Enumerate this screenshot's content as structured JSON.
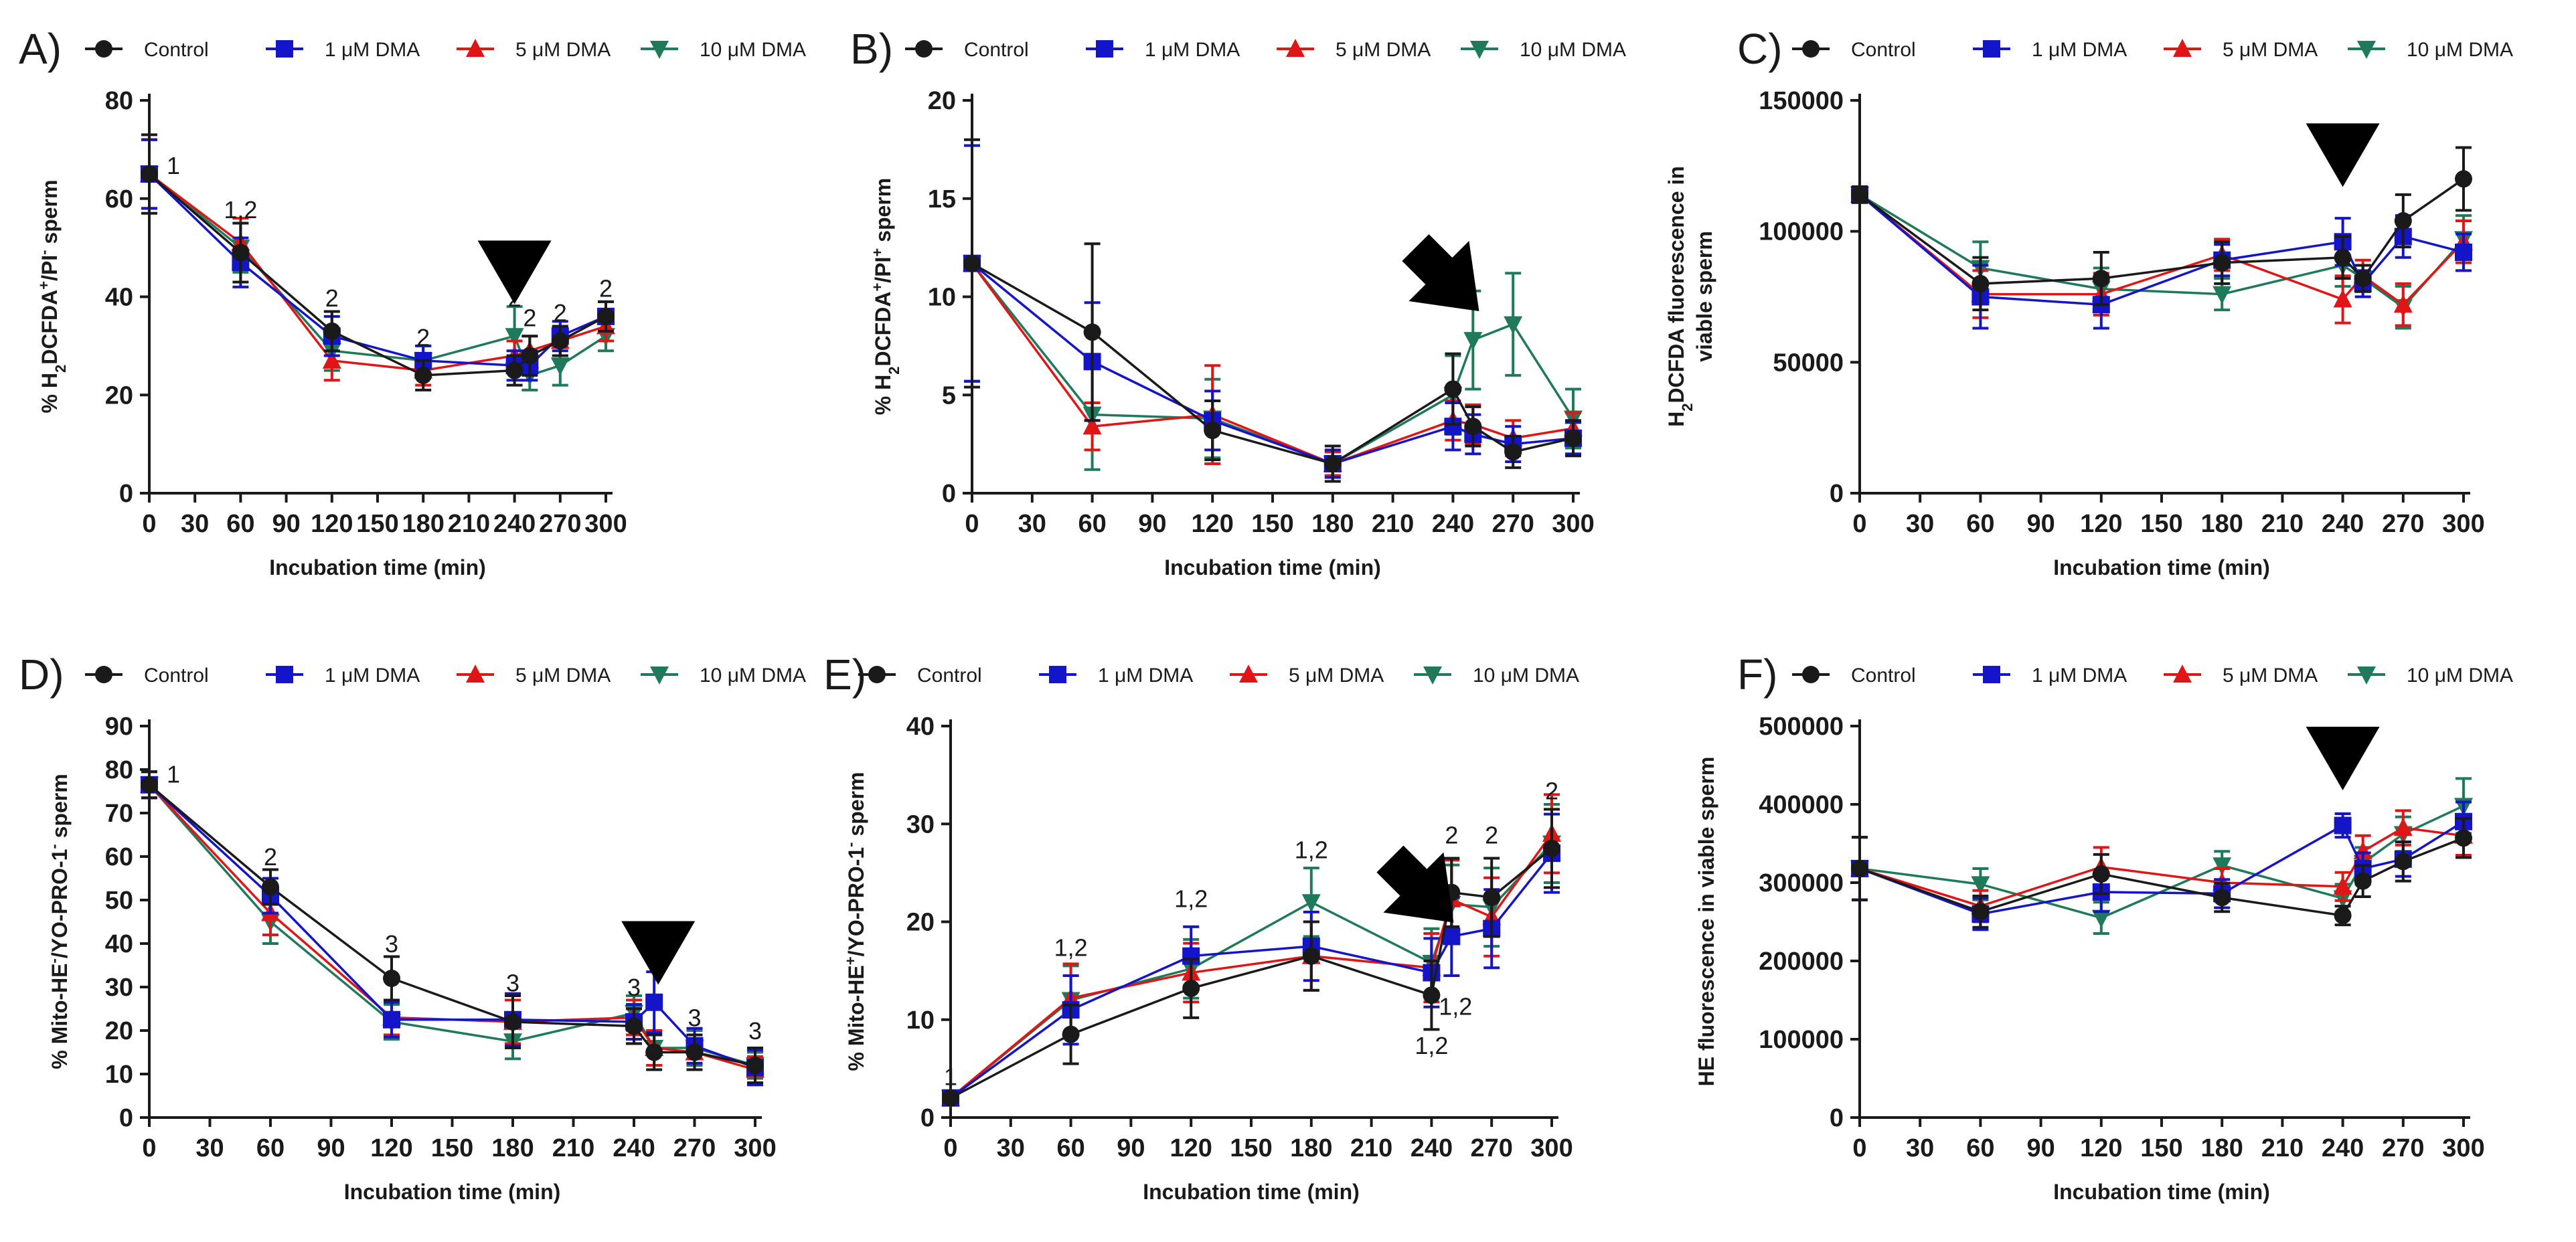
{
  "legend": {
    "items": [
      {
        "name": "Control",
        "color": "#1a1a1a",
        "marker": "circle"
      },
      {
        "name": "1 μM DMA",
        "color": "#1414c8",
        "marker": "square"
      },
      {
        "name": "5 μM DMA",
        "color": "#e01616",
        "marker": "triangle-up"
      },
      {
        "name": "10 μM DMA",
        "color": "#1f7a5a",
        "marker": "triangle-down"
      }
    ]
  },
  "chart_data": [
    {
      "panel": "A)",
      "type": "line",
      "xlabel": "Incubation time (min)",
      "ylabel_parts": [
        "% H",
        "2",
        "DCFDA",
        "+",
        "/PI",
        "-",
        " sperm"
      ],
      "x": [
        0,
        60,
        120,
        180,
        240,
        250,
        270,
        300
      ],
      "xticks": [
        0,
        30,
        60,
        90,
        120,
        150,
        180,
        210,
        240,
        270,
        300
      ],
      "xlim": [
        0,
        300
      ],
      "ylim": [
        0,
        80
      ],
      "yticks": [
        0,
        20,
        40,
        60,
        80
      ],
      "series": [
        {
          "name": "Control",
          "values": [
            65,
            49,
            33,
            24,
            25,
            28,
            31,
            36
          ],
          "err": [
            8,
            6,
            4,
            3,
            3,
            4,
            3,
            3
          ]
        },
        {
          "name": "1 μM DMA",
          "values": [
            65,
            47,
            32,
            27,
            26,
            26,
            32,
            36
          ],
          "err": [
            7,
            5,
            4,
            3,
            3,
            3,
            3,
            3
          ]
        },
        {
          "name": "5 μM DMA",
          "values": [
            65,
            51,
            27,
            25,
            28,
            29,
            31,
            34
          ],
          "err": [
            7,
            5,
            4,
            3,
            3,
            3,
            3,
            3
          ]
        },
        {
          "name": "10 μM DMA",
          "values": [
            65,
            50,
            29,
            27,
            32,
            24,
            26,
            32
          ],
          "err": [
            7,
            5,
            4,
            3,
            6,
            3,
            4,
            3
          ]
        }
      ],
      "annotations": [
        {
          "x": 0,
          "y": 65,
          "text": "1",
          "dx": 1
        },
        {
          "x": 60,
          "y": 56,
          "text": "1,2",
          "dx": 0
        },
        {
          "x": 120,
          "y": 38,
          "text": "2",
          "dx": 0
        },
        {
          "x": 180,
          "y": 30,
          "text": "2",
          "dx": 0
        },
        {
          "x": 240,
          "y": 38,
          "text": "2",
          "dx": 0
        },
        {
          "x": 250,
          "y": 34,
          "text": "2",
          "dx": 0
        },
        {
          "x": 270,
          "y": 35,
          "text": "2",
          "dx": 0
        },
        {
          "x": 300,
          "y": 40,
          "text": "2",
          "dx": 0
        }
      ],
      "arrow": {
        "x": 240,
        "y": 46,
        "dir": "down"
      }
    },
    {
      "panel": "B)",
      "type": "line",
      "xlabel": "Incubation time (min)",
      "ylabel_parts": [
        "% H",
        "2",
        "DCFDA",
        "+",
        "/PI",
        "+",
        " sperm"
      ],
      "x": [
        0,
        60,
        120,
        180,
        240,
        250,
        270,
        300
      ],
      "xticks": [
        0,
        30,
        60,
        90,
        120,
        150,
        180,
        210,
        240,
        270,
        300
      ],
      "xlim": [
        0,
        300
      ],
      "ylim": [
        0,
        20
      ],
      "yticks": [
        0,
        5,
        10,
        15,
        20
      ],
      "series": [
        {
          "name": "Control",
          "values": [
            11.7,
            8.2,
            3.2,
            1.5,
            5.3,
            3.4,
            2.1,
            2.8
          ],
          "err": [
            6.3,
            4.5,
            1.5,
            0.9,
            1.8,
            1.0,
            0.8,
            0.9
          ]
        },
        {
          "name": "1 μM DMA",
          "values": [
            11.7,
            6.7,
            3.7,
            1.5,
            3.4,
            3.0,
            2.5,
            2.8
          ],
          "err": [
            6,
            3,
            1.5,
            0.7,
            1.2,
            1.0,
            0.9,
            0.8
          ]
        },
        {
          "name": "5 μM DMA",
          "values": [
            11.7,
            3.4,
            4.0,
            1.5,
            3.7,
            3.5,
            2.8,
            3.3
          ],
          "err": [
            6,
            1.2,
            2.5,
            0.6,
            1.0,
            1.0,
            0.9,
            0.8
          ]
        },
        {
          "name": "10 μM DMA",
          "values": [
            11.7,
            4.0,
            3.8,
            1.5,
            5.0,
            7.8,
            8.6,
            3.8
          ],
          "err": [
            6,
            2.8,
            2.0,
            0.6,
            2.0,
            2.5,
            2.6,
            1.5
          ]
        }
      ],
      "annotations": [],
      "arrow": {
        "x": 238,
        "y": 10.8,
        "dir": "down-right"
      }
    },
    {
      "panel": "C)",
      "type": "line",
      "xlabel": "Incubation time (min)",
      "ylabel_lines": [
        [
          "H",
          "2",
          "DCFDA fluorescence in"
        ],
        [
          "viable sperm"
        ]
      ],
      "x": [
        0,
        60,
        120,
        180,
        240,
        250,
        270,
        300
      ],
      "xticks": [
        0,
        30,
        60,
        90,
        120,
        150,
        180,
        210,
        240,
        270,
        300
      ],
      "xlim": [
        0,
        300
      ],
      "ylim": [
        0,
        150000
      ],
      "yticks": [
        0,
        50000,
        100000,
        150000
      ],
      "series": [
        {
          "name": "Control",
          "values": [
            114000,
            80000,
            82000,
            88000,
            90000,
            82000,
            104000,
            120000
          ],
          "err": [
            3000,
            10000,
            10000,
            8000,
            8000,
            5000,
            10000,
            12000
          ]
        },
        {
          "name": "1 μM DMA",
          "values": [
            114000,
            75000,
            72000,
            89000,
            96000,
            80000,
            98000,
            92000
          ],
          "err": [
            3000,
            12000,
            9000,
            6000,
            9000,
            5000,
            8000,
            7000
          ]
        },
        {
          "name": "5 μM DMA",
          "values": [
            114000,
            76000,
            76000,
            91000,
            74000,
            83000,
            72000,
            96000
          ],
          "err": [
            3000,
            9000,
            8000,
            6000,
            9000,
            6000,
            8000,
            8000
          ]
        },
        {
          "name": "10 μM DMA",
          "values": [
            114000,
            86000,
            78000,
            76000,
            87000,
            82000,
            71000,
            97000
          ],
          "err": [
            3000,
            10000,
            8000,
            6000,
            8000,
            5000,
            8000,
            9000
          ]
        }
      ],
      "annotations": [],
      "arrow": {
        "x": 240,
        "y": 131000,
        "dir": "down"
      }
    },
    {
      "panel": "D)",
      "type": "line",
      "xlabel": "Incubation time (min)",
      "ylabel_parts": [
        "% Mito-HE",
        "-",
        "/YO-PRO-1",
        "-",
        " sperm"
      ],
      "x": [
        0,
        60,
        120,
        180,
        240,
        250,
        270,
        300
      ],
      "xticks": [
        0,
        30,
        60,
        90,
        120,
        150,
        180,
        210,
        240,
        270,
        300
      ],
      "xlim": [
        0,
        300
      ],
      "ylim": [
        0,
        90
      ],
      "yticks": [
        0,
        10,
        20,
        30,
        40,
        50,
        60,
        70,
        80,
        90
      ],
      "series": [
        {
          "name": "Control",
          "values": [
            76.5,
            53,
            32,
            22,
            21,
            15,
            15,
            12
          ],
          "err": [
            3,
            4,
            5,
            6,
            4,
            4,
            4,
            4
          ]
        },
        {
          "name": "1 μM DMA",
          "values": [
            76.5,
            51,
            22.5,
            22.5,
            22,
            26.5,
            16.5,
            11.5
          ],
          "err": [
            3,
            4,
            4,
            6,
            4,
            7,
            4,
            4
          ]
        },
        {
          "name": "5 μM DMA",
          "values": [
            76.5,
            47,
            23,
            22,
            23,
            16,
            15,
            11
          ],
          "err": [
            3,
            5,
            4,
            5,
            4,
            4,
            4,
            3
          ]
        },
        {
          "name": "10 μM DMA",
          "values": [
            76.5,
            45,
            22,
            17.5,
            24,
            16,
            16,
            12
          ],
          "err": [
            3,
            5,
            4,
            4,
            4,
            4,
            4,
            3
          ]
        }
      ],
      "annotations": [
        {
          "x": 0,
          "y": 77,
          "text": "1",
          "dx": 1
        },
        {
          "x": 60,
          "y": 58,
          "text": "2",
          "dx": 0
        },
        {
          "x": 120,
          "y": 38,
          "text": "3",
          "dx": 0
        },
        {
          "x": 180,
          "y": 29,
          "text": "3",
          "dx": 0
        },
        {
          "x": 240,
          "y": 28,
          "text": "3",
          "dx": 0
        },
        {
          "x": 270,
          "y": 21,
          "text": "3",
          "dx": 0
        },
        {
          "x": 300,
          "y": 18,
          "text": "3",
          "dx": 0
        }
      ],
      "arrow": {
        "x": 252,
        "y": 39,
        "dir": "down"
      }
    },
    {
      "panel": "E)",
      "type": "line",
      "xlabel": "Incubation time (min)",
      "ylabel_parts": [
        "% Mito-HE",
        "+",
        "/YO-PRO-1",
        "-",
        " sperm"
      ],
      "x": [
        0,
        60,
        120,
        180,
        240,
        250,
        270,
        300
      ],
      "xticks": [
        0,
        30,
        60,
        90,
        120,
        150,
        180,
        210,
        240,
        270,
        300
      ],
      "xlim": [
        0,
        300
      ],
      "ylim": [
        0,
        40
      ],
      "yticks": [
        0,
        10,
        20,
        30,
        40
      ],
      "series": [
        {
          "name": "Control",
          "values": [
            2,
            8.5,
            13.2,
            16.5,
            12.5,
            23,
            22.5,
            27.5
          ],
          "err": [
            0.5,
            3,
            3,
            3.5,
            3.5,
            3.5,
            4,
            4
          ]
        },
        {
          "name": "1 μM DMA",
          "values": [
            2,
            11,
            16.5,
            17.5,
            14.8,
            18.5,
            19.3,
            27
          ],
          "err": [
            0.5,
            3.5,
            3,
            3.5,
            3.5,
            4,
            4,
            4
          ]
        },
        {
          "name": "5 μM DMA",
          "values": [
            2,
            12.2,
            14.8,
            16.5,
            15.3,
            22.3,
            20.5,
            29
          ],
          "err": [
            0.5,
            3.5,
            3,
            3.5,
            3.5,
            4,
            4,
            4
          ]
        },
        {
          "name": "10 μM DMA",
          "values": [
            2,
            12,
            15.2,
            22,
            15.8,
            21.8,
            21.5,
            28
          ],
          "err": [
            0.5,
            3.5,
            3,
            3.5,
            3.5,
            4,
            4,
            4
          ]
        }
      ],
      "annotations": [
        {
          "x": 0,
          "y": 3.3,
          "text": "1",
          "dx": 0
        },
        {
          "x": 60,
          "y": 16.5,
          "text": "1,2",
          "dx": 0
        },
        {
          "x": 120,
          "y": 21.5,
          "text": "1,2",
          "dx": 0
        },
        {
          "x": 180,
          "y": 26.5,
          "text": "1,2",
          "dx": 0
        },
        {
          "x": 240,
          "y": 6.5,
          "text": "1,2",
          "dx": 0
        },
        {
          "x": 252,
          "y": 10.5,
          "text": "1,2",
          "dx": 0
        },
        {
          "x": 250,
          "y": 28,
          "text": "2",
          "dx": 0
        },
        {
          "x": 270,
          "y": 28,
          "text": "2",
          "dx": 0
        },
        {
          "x": 300,
          "y": 32.5,
          "text": "2",
          "dx": 0
        }
      ],
      "arrow": {
        "x": 236,
        "y": 23,
        "dir": "down-right"
      }
    },
    {
      "panel": "F)",
      "type": "line",
      "xlabel": "Incubation time (min)",
      "ylabel_lines": [
        [
          "HE fluorescence in viable sperm"
        ]
      ],
      "x": [
        0,
        60,
        120,
        180,
        240,
        250,
        270,
        300
      ],
      "xticks": [
        0,
        30,
        60,
        90,
        120,
        150,
        180,
        210,
        240,
        270,
        300
      ],
      "xlim": [
        0,
        300
      ],
      "ylim": [
        0,
        500000
      ],
      "yticks": [
        0,
        100000,
        200000,
        300000,
        400000,
        500000
      ],
      "series": [
        {
          "name": "Control",
          "values": [
            318000,
            263000,
            311000,
            281000,
            258000,
            302000,
            327000,
            357000
          ],
          "err": [
            40000,
            20000,
            25000,
            18000,
            12000,
            20000,
            25000,
            25000
          ]
        },
        {
          "name": "1 μM DMA",
          "values": [
            318000,
            260000,
            288000,
            286000,
            373000,
            318000,
            330000,
            378000
          ],
          "err": [
            40000,
            20000,
            25000,
            18000,
            15000,
            20000,
            22000,
            25000
          ]
        },
        {
          "name": "5 μM DMA",
          "values": [
            318000,
            270000,
            320000,
            300000,
            295000,
            340000,
            370000,
            360000
          ],
          "err": [
            40000,
            20000,
            25000,
            18000,
            18000,
            20000,
            22000,
            25000
          ]
        },
        {
          "name": "10 μM DMA",
          "values": [
            318000,
            298000,
            255000,
            322000,
            280000,
            325000,
            362000,
            398000
          ],
          "err": [
            40000,
            20000,
            20000,
            18000,
            18000,
            20000,
            22000,
            35000
          ]
        }
      ],
      "annotations": [],
      "arrow": {
        "x": 240,
        "y": 465000,
        "dir": "down"
      }
    }
  ]
}
